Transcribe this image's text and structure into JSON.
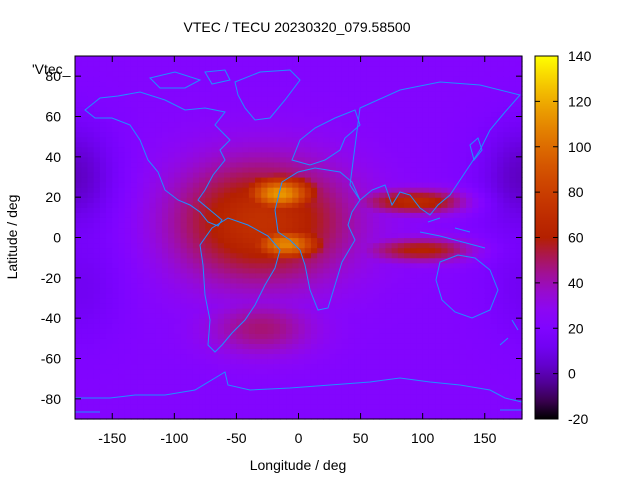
{
  "chart_data": {
    "type": "heatmap",
    "title": "VTEC / TECU 20230320_079.58500",
    "xlabel": "Longitude / deg",
    "ylabel": "Latitude / deg",
    "legend_label": "'Vtec_",
    "xlim": [
      -180,
      180
    ],
    "ylim": [
      -90,
      90
    ],
    "x_ticks": [
      -150,
      -100,
      -50,
      0,
      50,
      100,
      150
    ],
    "y_ticks": [
      -80,
      -60,
      -40,
      -20,
      0,
      20,
      40,
      60,
      80
    ],
    "colorbar": {
      "range": [
        -20,
        140
      ],
      "ticks": [
        -20,
        0,
        20,
        40,
        60,
        80,
        100,
        120,
        140
      ],
      "palette": "gnuplot-pm3d-rgbformulae-7-5-15",
      "colors": [
        "#000000",
        "#3b00a8",
        "#8000ff",
        "#c01aa0",
        "#e05000",
        "#f09800",
        "#ffff00"
      ]
    },
    "background_value": 22,
    "enhancement_regions": [
      {
        "name": "equatorial-anomaly-north-atlantic",
        "lon": -15,
        "lat": 22,
        "peak_value": 115,
        "lon_halfwidth": 30,
        "lat_halfwidth": 9
      },
      {
        "name": "equatorial-anomaly-south-atlantic",
        "lon": -10,
        "lat": -3,
        "peak_value": 110,
        "lon_halfwidth": 30,
        "lat_halfwidth": 8
      },
      {
        "name": "broad-daytime-region",
        "lon": -30,
        "lat": 8,
        "peak_value": 72,
        "lon_halfwidth": 75,
        "lat_halfwidth": 32
      },
      {
        "name": "eastern-north-crest",
        "lon": 95,
        "lat": 18,
        "peak_value": 68,
        "lon_halfwidth": 45,
        "lat_halfwidth": 6
      },
      {
        "name": "eastern-south-crest",
        "lon": 100,
        "lat": -6,
        "peak_value": 62,
        "lon_halfwidth": 45,
        "lat_halfwidth": 6
      },
      {
        "name": "southern-extension",
        "lon": -30,
        "lat": -45,
        "peak_value": 48,
        "lon_halfwidth": 45,
        "lat_halfwidth": 14
      }
    ],
    "minimum_regions": [
      {
        "name": "north-pacific-minimum",
        "lon": -180,
        "lat": 30,
        "value": 2
      },
      {
        "name": "south-pacific-minimum",
        "lon": -175,
        "lat": -25,
        "value": 12
      }
    ]
  }
}
